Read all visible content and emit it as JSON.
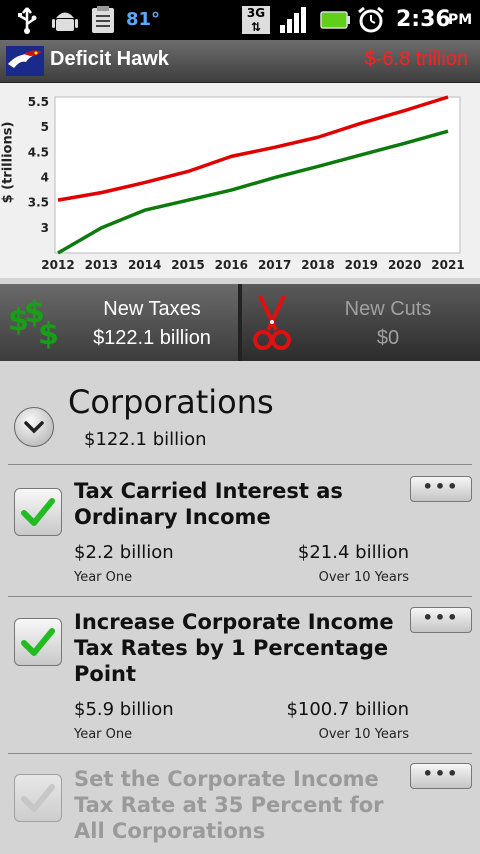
{
  "status_bar": {
    "battery_level": "81°",
    "network": "3G",
    "time": "2:36",
    "ampm": "PM",
    "icons": [
      "usb-icon",
      "android-debug-icon",
      "clipboard-icon",
      "network-3g-icon",
      "signal-icon",
      "battery-icon",
      "alarm-icon"
    ]
  },
  "app": {
    "title": "Deficit Hawk",
    "deficit": "$-6.8 trillion"
  },
  "chart_data": {
    "type": "line",
    "x": [
      2012,
      2013,
      2014,
      2015,
      2016,
      2017,
      2018,
      2019,
      2020,
      2021
    ],
    "ylabel": "$ (trillions)",
    "ylim": [
      2.5,
      5.6
    ],
    "yticks": [
      "5.5",
      "5",
      "4.5",
      "4",
      "3.5",
      "3"
    ],
    "series": [
      {
        "color": "#e00000",
        "values": [
          3.55,
          3.7,
          3.9,
          4.12,
          4.42,
          4.6,
          4.8,
          5.08,
          5.33,
          5.6
        ]
      },
      {
        "color": "#0c7a0c",
        "values": [
          2.5,
          3.0,
          3.35,
          3.55,
          3.75,
          4.0,
          4.22,
          4.45,
          4.68,
          4.92
        ]
      }
    ]
  },
  "tabs": {
    "new_taxes_label": "New Taxes",
    "new_taxes_value": "$122.1 billion",
    "new_cuts_label": "New Cuts",
    "new_cuts_value": "$0"
  },
  "category": {
    "title": "Corporations",
    "total": "$122.1 billion"
  },
  "items": [
    {
      "title": "Tax Carried Interest as Ordinary Income",
      "year_one": "$2.2 billion",
      "year_one_label": "Year One",
      "ten_year": "$21.4 billion",
      "ten_year_label": "Over 10 Years",
      "checked": true
    },
    {
      "title": "Increase Corporate Income Tax Rates by 1 Percentage Point",
      "year_one": "$5.9 billion",
      "year_one_label": "Year One",
      "ten_year": "$100.7 billion",
      "ten_year_label": "Over 10 Years",
      "checked": true
    },
    {
      "title": "Set the Corporate Income Tax Rate at 35 Percent for All Corporations",
      "checked": false
    }
  ],
  "more_label": "•••",
  "colors": {
    "accent_red": "#ff2020",
    "check_green": "#22bb22"
  }
}
